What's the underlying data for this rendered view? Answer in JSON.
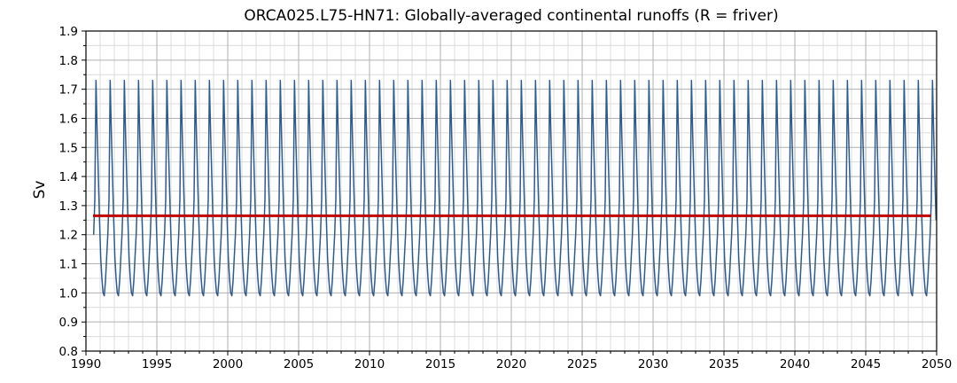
{
  "chart_data": {
    "type": "line",
    "title": "ORCA025.L75-HN71: Globally-averaged continental runoffs (R = friver)",
    "xlabel": "",
    "ylabel": "Sv",
    "xlim": [
      1990,
      2050
    ],
    "ylim": [
      0.8,
      1.9
    ],
    "x_ticks": [
      "1990",
      "1995",
      "2000",
      "2005",
      "2010",
      "2015",
      "2020",
      "2025",
      "2030",
      "2035",
      "2040",
      "2045",
      "2050"
    ],
    "y_ticks": [
      "0.8",
      "0.9",
      "1.0",
      "1.1",
      "1.2",
      "1.3",
      "1.4",
      "1.5",
      "1.6",
      "1.7",
      "1.8",
      "1.9"
    ],
    "grid": true,
    "series": [
      {
        "kind": "monthly-seasonal-cycle",
        "color": "#2d5b8c",
        "x_start": 1990.54,
        "x_end": 2050.0,
        "monthly_climatology": [
          1.12,
          1.05,
          1.0,
          0.99,
          1.04,
          1.12,
          1.2,
          1.32,
          1.73,
          1.55,
          1.4,
          1.25
        ]
      },
      {
        "kind": "mean",
        "color": "#c00000",
        "x": [
          1990.5,
          2049.6
        ],
        "y": [
          1.265,
          1.265
        ]
      }
    ]
  },
  "colors": {
    "background": "#ffffff",
    "grid_major": "#b0b0b0",
    "grid_minor": "#dcdcdc",
    "axes": "#000000"
  }
}
